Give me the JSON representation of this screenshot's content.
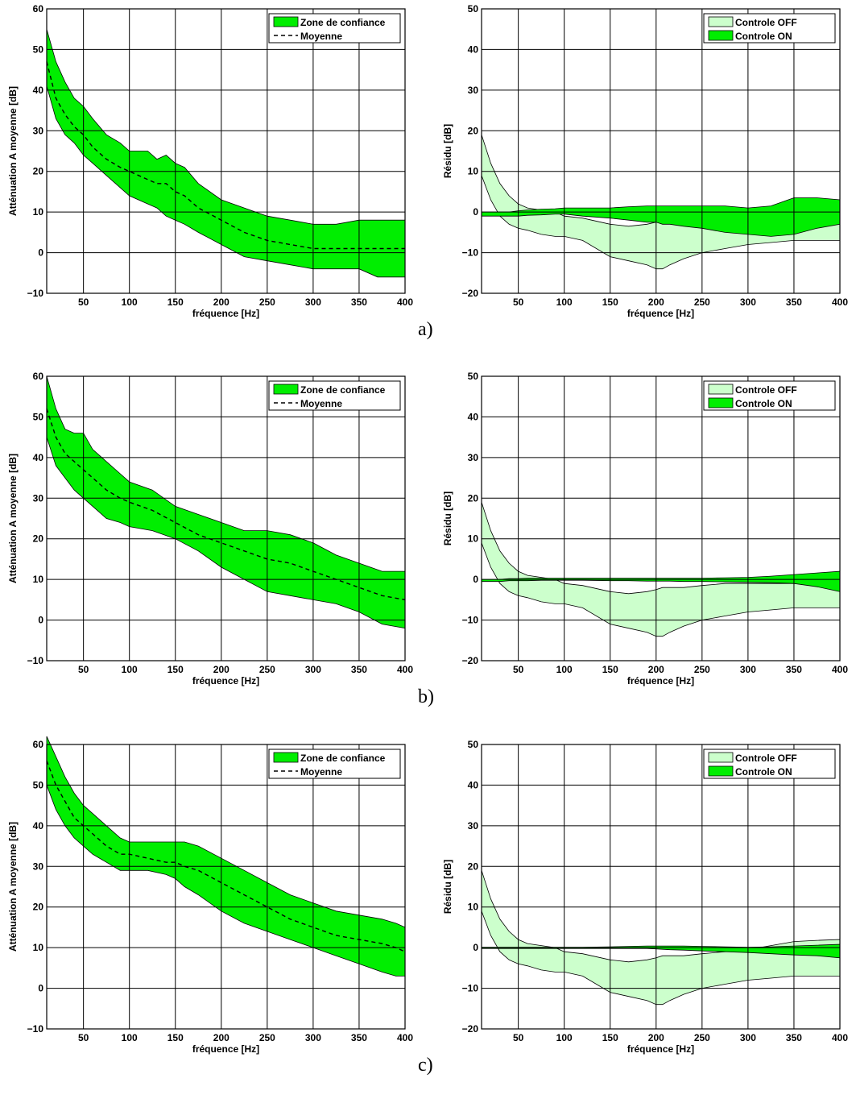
{
  "subfigure_labels": [
    "a)",
    "b)",
    "c)"
  ],
  "colors": {
    "band": "#00ee00",
    "off": "#ccffcc",
    "line": "#000000",
    "grid": "#000000"
  },
  "chart_data": [
    {
      "type": "area",
      "panel": "a-left",
      "xlabel": "fréquence [Hz]",
      "ylabel": "Atténuation A moyenne [dB]",
      "xlim": [
        10,
        400
      ],
      "ylim": [
        -10,
        60
      ],
      "xticks": [
        50,
        100,
        150,
        200,
        250,
        300,
        350,
        400
      ],
      "yticks": [
        -10,
        0,
        10,
        20,
        30,
        40,
        50,
        60
      ],
      "grid": true,
      "legend_position": "top-right",
      "x": [
        10,
        20,
        30,
        40,
        50,
        60,
        75,
        90,
        100,
        120,
        130,
        140,
        150,
        160,
        175,
        200,
        225,
        250,
        275,
        300,
        325,
        350,
        370,
        385,
        400
      ],
      "series": [
        {
          "name": "Zone de confiance",
          "kind": "band",
          "upper": [
            55,
            47,
            42,
            38,
            36,
            33,
            29,
            27,
            25,
            25,
            23,
            24,
            22,
            21,
            17,
            13,
            11,
            9,
            8,
            7,
            7,
            8,
            8,
            8,
            8
          ],
          "lower": [
            41,
            33,
            29,
            27,
            24,
            22,
            19,
            16,
            14,
            12,
            11,
            9,
            8,
            7,
            5,
            2,
            -1,
            -2,
            -3,
            -4,
            -4,
            -4,
            -6,
            -6,
            -6
          ]
        },
        {
          "name": "Moyenne",
          "kind": "line",
          "values": [
            47,
            38,
            34,
            31,
            29,
            26,
            23,
            21,
            20,
            18,
            17,
            17,
            15,
            14,
            11,
            8,
            5,
            3,
            2,
            1,
            1,
            1,
            1,
            1,
            1
          ]
        }
      ]
    },
    {
      "type": "area",
      "panel": "a-right",
      "xlabel": "fréquence [Hz]",
      "ylabel": "Résidu [dB]",
      "xlim": [
        10,
        400
      ],
      "ylim": [
        -20,
        50
      ],
      "xticks": [
        50,
        100,
        150,
        200,
        250,
        300,
        350,
        400
      ],
      "yticks": [
        -20,
        -10,
        0,
        10,
        20,
        30,
        40,
        50
      ],
      "grid": true,
      "legend_position": "top-right",
      "x": [
        10,
        20,
        30,
        40,
        50,
        60,
        75,
        90,
        100,
        120,
        150,
        170,
        190,
        200,
        207,
        215,
        230,
        250,
        275,
        300,
        325,
        350,
        375,
        400
      ],
      "series": [
        {
          "name": "Controle OFF",
          "kind": "band",
          "upper": [
            19,
            12,
            7,
            4,
            2,
            1,
            0.5,
            0,
            -1,
            -1.5,
            -3,
            -3.5,
            -3,
            -2.5,
            -2,
            -2,
            -2,
            -1.5,
            -1,
            -1,
            -1,
            -1,
            -1,
            -1
          ],
          "lower": [
            9,
            3,
            -1,
            -3,
            -4,
            -4.5,
            -5.5,
            -6,
            -6,
            -7,
            -11,
            -12,
            -13,
            -14,
            -14,
            -13,
            -11.5,
            -10,
            -9,
            -8,
            -7.5,
            -7,
            -7,
            -7
          ]
        },
        {
          "name": "Controle ON",
          "kind": "band",
          "upper": [
            0,
            0,
            0,
            0,
            0.3,
            0.5,
            0.7,
            0.8,
            1,
            1,
            1,
            1.3,
            1.5,
            1.5,
            1.5,
            1.5,
            1.5,
            1.5,
            1.5,
            1,
            1.5,
            3.5,
            3.5,
            3
          ],
          "lower": [
            -1,
            -1,
            -1,
            -1,
            -1,
            -0.8,
            -0.7,
            -0.5,
            -0.5,
            -1,
            -1.5,
            -2,
            -2.5,
            -2.5,
            -3,
            -3,
            -3.5,
            -4,
            -5,
            -5.5,
            -6,
            -5.5,
            -4,
            -3
          ]
        }
      ]
    },
    {
      "type": "area",
      "panel": "b-left",
      "xlabel": "fréquence [Hz]",
      "ylabel": "Atténuation A moyenne [dB]",
      "xlim": [
        10,
        400
      ],
      "ylim": [
        -10,
        60
      ],
      "xticks": [
        50,
        100,
        150,
        200,
        250,
        300,
        350,
        400
      ],
      "yticks": [
        -10,
        0,
        10,
        20,
        30,
        40,
        50,
        60
      ],
      "grid": true,
      "legend_position": "top-right",
      "x": [
        10,
        20,
        30,
        40,
        50,
        60,
        75,
        90,
        100,
        125,
        150,
        175,
        200,
        225,
        250,
        275,
        300,
        325,
        350,
        375,
        400
      ],
      "series": [
        {
          "name": "Zone de confiance",
          "kind": "band",
          "upper": [
            60,
            52,
            47,
            46,
            46,
            42,
            39,
            36,
            34,
            32,
            28,
            26,
            24,
            22,
            22,
            21,
            19,
            16,
            14,
            12,
            12
          ],
          "lower": [
            45,
            38,
            35,
            32,
            30,
            28,
            25,
            24,
            23,
            22,
            20,
            17,
            13,
            10,
            7,
            6,
            5,
            4,
            2,
            -1,
            -2
          ]
        },
        {
          "name": "Moyenne",
          "kind": "line",
          "values": [
            52,
            45,
            41,
            39,
            37,
            35,
            32,
            30,
            29,
            27,
            24,
            21,
            19,
            17,
            15,
            14,
            12,
            10,
            8,
            6,
            5
          ]
        }
      ]
    },
    {
      "type": "area",
      "panel": "b-right",
      "xlabel": "fréquence [Hz]",
      "ylabel": "Résidu [dB]",
      "xlim": [
        10,
        400
      ],
      "ylim": [
        -20,
        50
      ],
      "xticks": [
        50,
        100,
        150,
        200,
        250,
        300,
        350,
        400
      ],
      "yticks": [
        -20,
        -10,
        0,
        10,
        20,
        30,
        40,
        50
      ],
      "grid": true,
      "legend_position": "top-right",
      "x": [
        10,
        20,
        30,
        40,
        50,
        60,
        75,
        90,
        100,
        120,
        150,
        170,
        190,
        200,
        207,
        215,
        230,
        250,
        275,
        300,
        325,
        350,
        375,
        400
      ],
      "series": [
        {
          "name": "Controle OFF",
          "kind": "band",
          "upper": [
            19,
            12,
            7,
            4,
            2,
            1,
            0.5,
            0,
            -1,
            -1.5,
            -3,
            -3.5,
            -3,
            -2.5,
            -2,
            -2,
            -2,
            -1.5,
            -1,
            -1,
            -1,
            -1,
            -1,
            -1
          ],
          "lower": [
            9,
            3,
            -1,
            -3,
            -4,
            -4.5,
            -5.5,
            -6,
            -6,
            -7,
            -11,
            -12,
            -13,
            -14,
            -14,
            -13,
            -11.5,
            -10,
            -9,
            -8,
            -7.5,
            -7,
            -7,
            -7
          ]
        },
        {
          "name": "Controle ON",
          "kind": "band",
          "upper": [
            0,
            0,
            0,
            0.2,
            0.2,
            0.3,
            0.3,
            0.3,
            0.3,
            0.3,
            0.3,
            0.3,
            0.3,
            0.3,
            0.3,
            0.3,
            0.3,
            0.3,
            0.4,
            0.5,
            0.8,
            1.2,
            1.6,
            2
          ],
          "lower": [
            -0.5,
            -0.5,
            -0.5,
            -0.3,
            -0.3,
            -0.3,
            -0.2,
            -0.2,
            -0.2,
            -0.2,
            -0.3,
            -0.3,
            -0.4,
            -0.4,
            -0.4,
            -0.4,
            -0.5,
            -0.5,
            -0.6,
            -0.7,
            -0.8,
            -1,
            -1.8,
            -3
          ]
        }
      ]
    },
    {
      "type": "area",
      "panel": "c-left",
      "xlabel": "fréquence [Hz]",
      "ylabel": "Atténuation A moyenne [dB]",
      "xlim": [
        10,
        400
      ],
      "ylim": [
        -10,
        60
      ],
      "xticks": [
        50,
        100,
        150,
        200,
        250,
        300,
        350,
        400
      ],
      "yticks": [
        -10,
        0,
        10,
        20,
        30,
        40,
        50,
        60
      ],
      "grid": true,
      "legend_position": "top-right",
      "x": [
        10,
        20,
        30,
        40,
        50,
        60,
        75,
        90,
        100,
        120,
        140,
        150,
        160,
        175,
        200,
        225,
        250,
        275,
        300,
        325,
        350,
        375,
        390,
        400
      ],
      "series": [
        {
          "name": "Zone de confiance",
          "kind": "band",
          "upper": [
            62,
            57,
            52,
            48,
            45,
            43,
            40,
            37,
            36,
            36,
            36,
            36,
            36,
            35,
            32,
            29,
            26,
            23,
            21,
            19,
            18,
            17,
            16,
            15
          ],
          "lower": [
            50,
            44,
            40,
            37,
            35,
            33,
            31,
            29,
            29,
            29,
            28,
            27,
            25,
            23,
            19,
            16,
            14,
            12,
            10,
            8,
            6,
            4,
            3,
            3
          ]
        },
        {
          "name": "Moyenne",
          "kind": "line",
          "values": [
            56,
            50,
            46,
            42,
            40,
            38,
            35,
            33,
            33,
            32,
            31,
            31,
            30,
            29,
            26,
            23,
            20,
            17,
            15,
            13,
            12,
            11,
            10,
            9
          ]
        }
      ]
    },
    {
      "type": "area",
      "panel": "c-right",
      "xlabel": "fréquence [Hz]",
      "ylabel": "Résidu [dB]",
      "xlim": [
        10,
        400
      ],
      "ylim": [
        -20,
        50
      ],
      "xticks": [
        50,
        100,
        150,
        200,
        250,
        300,
        350,
        400
      ],
      "yticks": [
        -20,
        -10,
        0,
        10,
        20,
        30,
        40,
        50
      ],
      "grid": true,
      "legend_position": "top-right",
      "x": [
        10,
        20,
        30,
        40,
        50,
        60,
        75,
        90,
        100,
        120,
        150,
        170,
        190,
        200,
        207,
        215,
        230,
        250,
        275,
        300,
        325,
        350,
        375,
        400
      ],
      "series": [
        {
          "name": "Controle OFF",
          "kind": "band",
          "upper": [
            19,
            12,
            7,
            4,
            2,
            1,
            0.5,
            0,
            -1,
            -1.5,
            -3,
            -3.5,
            -3,
            -2.5,
            -2,
            -2,
            -2,
            -1.5,
            -1,
            -0.5,
            0.5,
            1.5,
            1.8,
            2
          ],
          "lower": [
            9,
            3,
            -1,
            -3,
            -4,
            -4.5,
            -5.5,
            -6,
            -6,
            -7,
            -11,
            -12,
            -13,
            -14,
            -14,
            -13,
            -11.5,
            -10,
            -9,
            -8,
            -7.5,
            -7,
            -7,
            -7
          ]
        },
        {
          "name": "Controle ON",
          "kind": "band",
          "upper": [
            0.1,
            0.1,
            0.1,
            0.1,
            0.1,
            0.1,
            0.1,
            0.1,
            0.1,
            0.1,
            0.2,
            0.3,
            0.4,
            0.4,
            0.4,
            0.4,
            0.4,
            0.3,
            0.2,
            0.1,
            0.2,
            0.4,
            0.6,
            0.8
          ],
          "lower": [
            -0.2,
            -0.2,
            -0.2,
            -0.2,
            -0.2,
            -0.2,
            -0.2,
            -0.2,
            -0.2,
            -0.2,
            -0.2,
            -0.2,
            -0.2,
            -0.3,
            -0.4,
            -0.5,
            -0.6,
            -0.8,
            -1,
            -1.2,
            -1.5,
            -1.8,
            -2,
            -2.5
          ]
        }
      ]
    }
  ]
}
